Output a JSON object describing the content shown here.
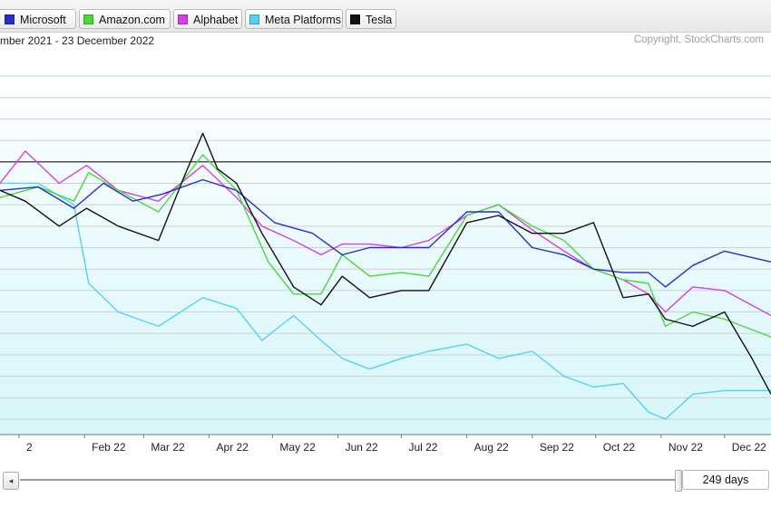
{
  "header": {
    "date_range": "mber 2021 - 23 December 2022",
    "copyright": "Copyright, StockCharts.com"
  },
  "legend": [
    {
      "label": "Microsoft",
      "color": "#2b2bc8"
    },
    {
      "label": "Amazon.com",
      "color": "#4cd83a"
    },
    {
      "label": "Alphabet",
      "color": "#d63fe0"
    },
    {
      "label": "Meta Platforms",
      "color": "#55d3ee"
    },
    {
      "label": "Tesla",
      "color": "#111111"
    }
  ],
  "range_control": {
    "scroll_left_icon": "◂",
    "days_label": "249 days"
  },
  "chart_data": {
    "type": "line",
    "x_tick_labels": [
      "2",
      "Feb 22",
      "Mar 22",
      "Apr 22",
      "May 22",
      "Jun 22",
      "Jul 22",
      "Aug 22",
      "Sep 22",
      "Oct 22",
      "Nov 22",
      "Dec 22"
    ],
    "x_range": [
      "2021-12-23",
      "2022-12-23"
    ],
    "y_axis_labels_visible": false,
    "ylim": [
      -72,
      24
    ],
    "reference_line_value": 0,
    "grid": true,
    "series": [
      {
        "name": "Microsoft",
        "color": "#2b2bc8",
        "x": [
          "2021-12-23",
          "2022-01-10",
          "2022-01-27",
          "2022-02-10",
          "2022-02-24",
          "2022-03-10",
          "2022-03-29",
          "2022-04-14",
          "2022-05-02",
          "2022-05-20",
          "2022-06-03",
          "2022-06-16",
          "2022-07-01",
          "2022-07-14",
          "2022-08-01",
          "2022-08-16",
          "2022-09-01",
          "2022-09-16",
          "2022-09-30",
          "2022-10-14",
          "2022-10-26",
          "2022-11-03",
          "2022-11-16",
          "2022-12-01",
          "2022-12-23"
        ],
        "y": [
          -8,
          -7,
          -13,
          -6,
          -11,
          -9,
          -5,
          -8,
          -17,
          -20,
          -26,
          -24,
          -24,
          -24,
          -14,
          -14,
          -24,
          -26,
          -30,
          -31,
          -31,
          -35,
          -29,
          -25,
          -28
        ]
      },
      {
        "name": "Amazon.com",
        "color": "#4cd83a",
        "x": [
          "2021-12-23",
          "2022-01-10",
          "2022-01-27",
          "2022-02-03",
          "2022-02-17",
          "2022-03-08",
          "2022-03-29",
          "2022-04-14",
          "2022-04-29",
          "2022-05-11",
          "2022-05-24",
          "2022-06-03",
          "2022-06-16",
          "2022-07-01",
          "2022-07-14",
          "2022-08-01",
          "2022-08-16",
          "2022-09-01",
          "2022-09-16",
          "2022-09-30",
          "2022-10-14",
          "2022-10-26",
          "2022-11-03",
          "2022-11-16",
          "2022-12-01",
          "2022-12-23"
        ],
        "y": [
          -10,
          -7,
          -11,
          -3,
          -8,
          -14,
          2,
          -8,
          -28,
          -37,
          -37,
          -26,
          -32,
          -31,
          -32,
          -15,
          -12,
          -18,
          -22,
          -30,
          -33,
          -34,
          -46,
          -42,
          -44,
          -49
        ]
      },
      {
        "name": "Alphabet",
        "color": "#d63fe0",
        "x": [
          "2021-12-23",
          "2022-01-04",
          "2022-01-20",
          "2022-02-02",
          "2022-02-17",
          "2022-03-08",
          "2022-03-29",
          "2022-04-14",
          "2022-04-26",
          "2022-05-11",
          "2022-05-24",
          "2022-06-03",
          "2022-06-16",
          "2022-07-01",
          "2022-07-14",
          "2022-08-01",
          "2022-08-16",
          "2022-09-01",
          "2022-09-16",
          "2022-09-30",
          "2022-10-14",
          "2022-10-26",
          "2022-11-03",
          "2022-11-16",
          "2022-12-01",
          "2022-12-23"
        ],
        "y": [
          -6,
          3,
          -6,
          -1,
          -8,
          -11,
          -1,
          -10,
          -18,
          -22,
          -26,
          -23,
          -23,
          -24,
          -22,
          -15,
          -12,
          -19,
          -25,
          -30,
          -33,
          -37,
          -42,
          -35,
          -36,
          -43
        ]
      },
      {
        "name": "Meta Platforms",
        "color": "#55d3ee",
        "x": [
          "2021-12-23",
          "2022-01-10",
          "2022-01-27",
          "2022-02-03",
          "2022-02-17",
          "2022-03-08",
          "2022-03-29",
          "2022-04-14",
          "2022-04-26",
          "2022-05-11",
          "2022-05-24",
          "2022-06-03",
          "2022-06-16",
          "2022-07-01",
          "2022-07-14",
          "2022-08-01",
          "2022-08-16",
          "2022-09-01",
          "2022-09-16",
          "2022-09-30",
          "2022-10-14",
          "2022-10-26",
          "2022-11-03",
          "2022-11-16",
          "2022-12-01",
          "2022-12-23"
        ],
        "y": [
          -6,
          -6,
          -12,
          -34,
          -42,
          -46,
          -38,
          -41,
          -50,
          -43,
          -50,
          -55,
          -58,
          -55,
          -53,
          -51,
          -55,
          -53,
          -60,
          -63,
          -62,
          -70,
          -72,
          -65,
          -64,
          -64
        ]
      },
      {
        "name": "Tesla",
        "color": "#111111",
        "x": [
          "2021-12-23",
          "2022-01-04",
          "2022-01-20",
          "2022-02-02",
          "2022-02-17",
          "2022-03-08",
          "2022-03-21",
          "2022-03-29",
          "2022-04-05",
          "2022-04-14",
          "2022-04-26",
          "2022-05-11",
          "2022-05-24",
          "2022-06-03",
          "2022-06-16",
          "2022-07-01",
          "2022-07-14",
          "2022-08-01",
          "2022-08-16",
          "2022-09-01",
          "2022-09-16",
          "2022-09-30",
          "2022-10-14",
          "2022-10-26",
          "2022-11-03",
          "2022-11-16",
          "2022-12-01",
          "2022-12-14",
          "2022-12-23"
        ],
        "y": [
          -8,
          -11,
          -18,
          -13,
          -18,
          -22,
          -3,
          8,
          -2,
          -6,
          -20,
          -35,
          -40,
          -32,
          -38,
          -36,
          -36,
          -17,
          -15,
          -20,
          -20,
          -17,
          -38,
          -37,
          -44,
          -46,
          -42,
          -55,
          -65
        ]
      }
    ]
  }
}
